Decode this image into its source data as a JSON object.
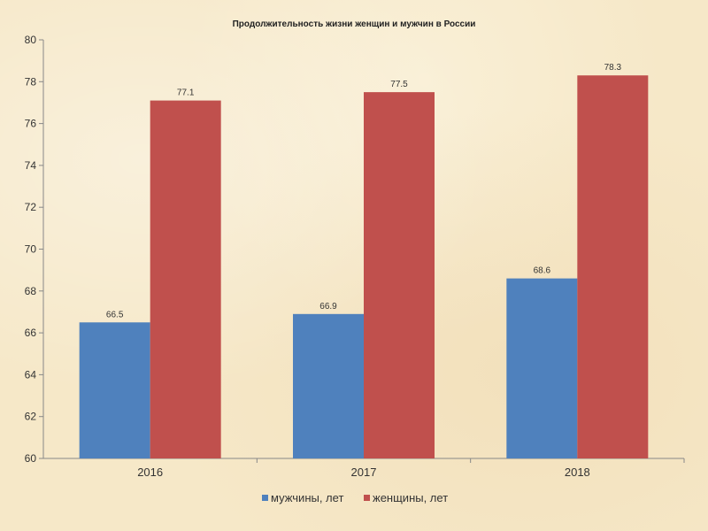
{
  "chart_data": {
    "type": "bar",
    "title": "Продолжительность жизни женщин и мужчин в России",
    "categories": [
      "2016",
      "2017",
      "2018"
    ],
    "series": [
      {
        "name": "мужчины, лет",
        "values": [
          66.5,
          66.9,
          68.6
        ],
        "color": "#4f81bd"
      },
      {
        "name": "женщины, лет",
        "values": [
          77.1,
          77.5,
          78.3
        ],
        "color": "#c0504d"
      }
    ],
    "ylim": [
      60,
      80
    ],
    "yticks": [
      60,
      62,
      64,
      66,
      68,
      70,
      72,
      74,
      76,
      78,
      80
    ],
    "grid": false,
    "legend": "bottom"
  }
}
